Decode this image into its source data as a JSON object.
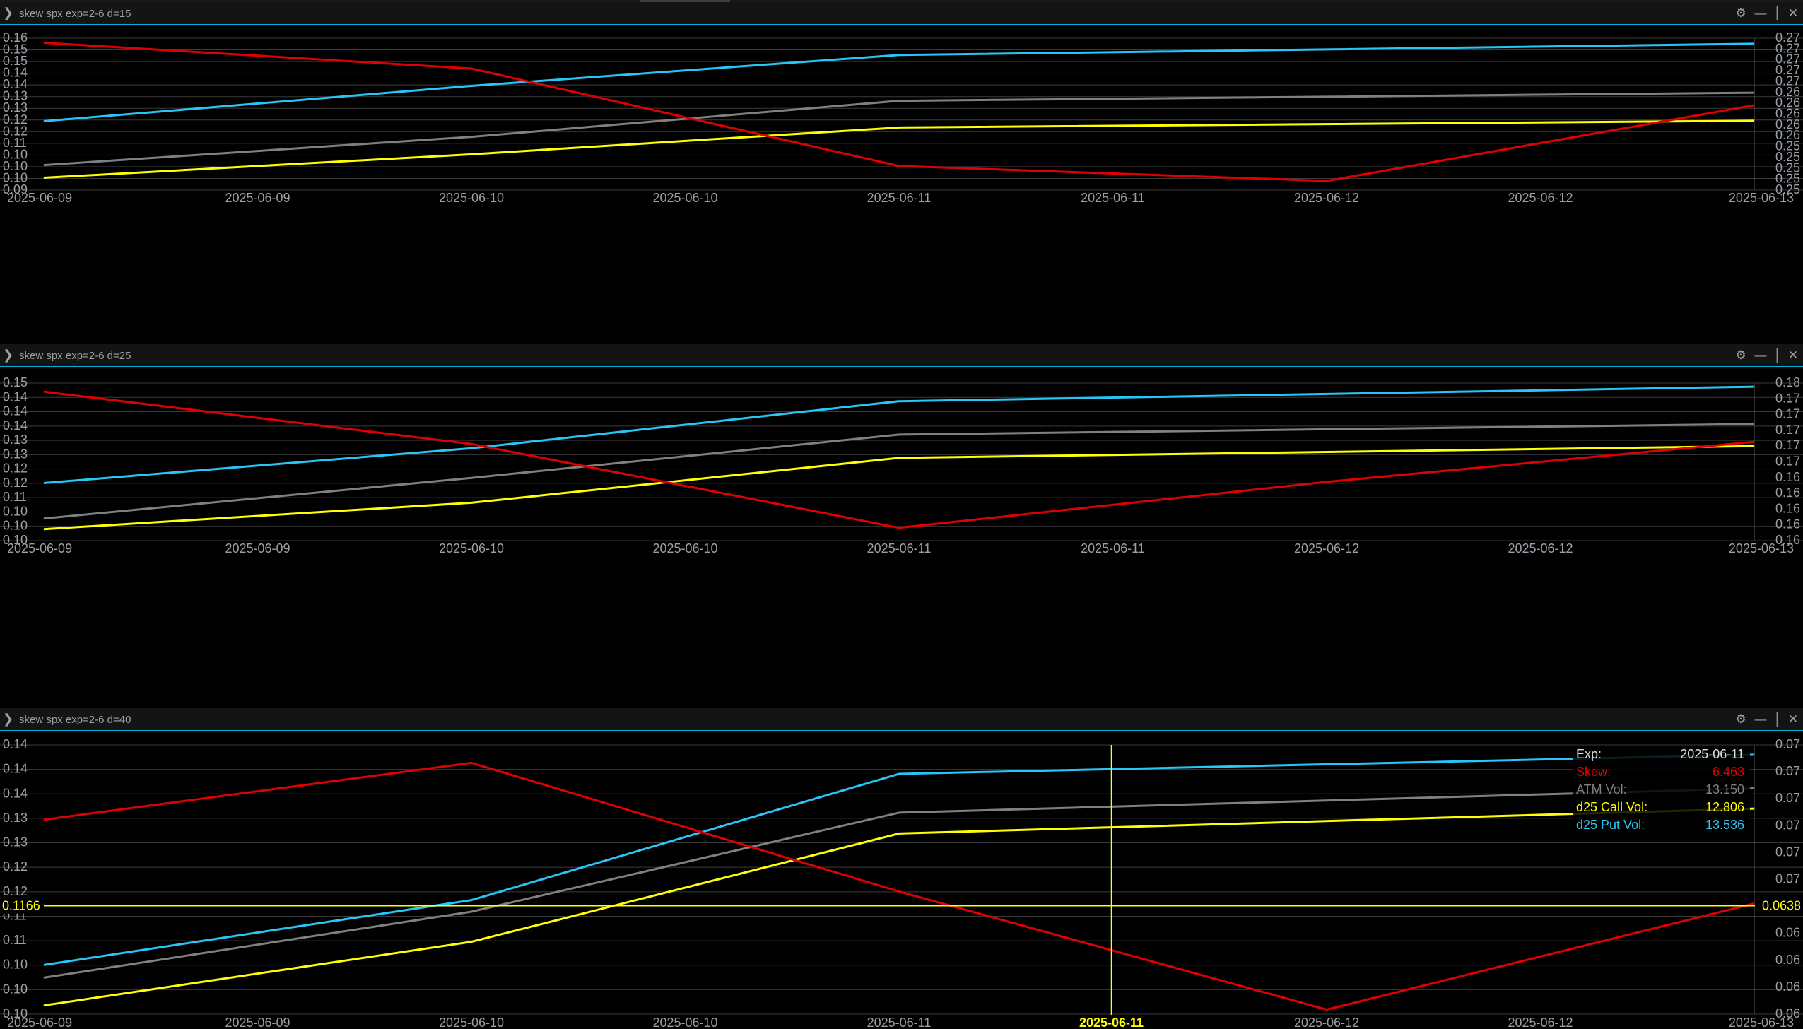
{
  "window": {
    "panels": [
      {
        "title": "skew spx exp=2-6 d=15"
      },
      {
        "title": "skew spx exp=2-6 d=25"
      },
      {
        "title": "skew spx exp=2-6 d=40"
      }
    ],
    "icons": {
      "chevron": "chevron-right-icon",
      "gear": "gear-icon",
      "minimize": "minimize-icon",
      "maximize": "maximize-icon",
      "close": "close-icon"
    }
  },
  "colors": {
    "background": "#000000",
    "grid": "#3a3a3a",
    "accent": "#00b4d8",
    "skew": "#e00000",
    "atm": "#808080",
    "call": "#ffff00",
    "put": "#29c5f6",
    "axis_text": "#9aa0a6"
  },
  "chart_data": [
    {
      "type": "line",
      "title": "skew spx exp=2-6 d=15",
      "x_tick_labels": [
        "2025-06-09",
        "2025-06-09",
        "2025-06-10",
        "2025-06-10",
        "2025-06-11",
        "2025-06-11",
        "2025-06-12",
        "2025-06-12",
        "2025-06-13"
      ],
      "left_tick_labels": [
        "0.16",
        "0.15",
        "0.15",
        "0.14",
        "0.14",
        "0.13",
        "0.13",
        "0.12",
        "0.12",
        "0.11",
        "0.10",
        "0.10",
        "0.10",
        "0.09"
      ],
      "right_tick_labels": [
        "0.27",
        "0.27",
        "0.27",
        "0.27",
        "0.27",
        "0.26",
        "0.26",
        "0.26",
        "0.26",
        "0.26",
        "0.25",
        "0.25",
        "0.25",
        "0.25",
        "0.25"
      ],
      "grid": true,
      "series": [
        {
          "key": "skew",
          "axis": "right",
          "x": [
            0,
            2,
            4,
            6,
            8
          ],
          "y": [
            0.2722,
            0.2677,
            0.2507,
            0.2481,
            0.2613
          ]
        },
        {
          "key": "atm",
          "axis": "left",
          "x": [
            0,
            2,
            4,
            8
          ],
          "y": [
            0.1057,
            0.1178,
            0.1332,
            0.1367
          ]
        },
        {
          "key": "call",
          "axis": "left",
          "x": [
            0,
            2,
            4,
            8
          ],
          "y": [
            0.1003,
            0.1103,
            0.1218,
            0.1247
          ]
        },
        {
          "key": "put",
          "axis": "left",
          "x": [
            0,
            2,
            4,
            8
          ],
          "y": [
            0.1245,
            0.1396,
            0.1528,
            0.1576
          ]
        }
      ]
    },
    {
      "type": "line",
      "title": "skew spx exp=2-6 d=25",
      "x_tick_labels": [
        "2025-06-09",
        "2025-06-09",
        "2025-06-10",
        "2025-06-10",
        "2025-06-11",
        "2025-06-11",
        "2025-06-12",
        "2025-06-12",
        "2025-06-13"
      ],
      "left_tick_labels": [
        "0.15",
        "0.14",
        "0.14",
        "0.14",
        "0.13",
        "0.13",
        "0.12",
        "0.12",
        "0.11",
        "0.10",
        "0.10",
        "0.10"
      ],
      "right_tick_labels": [
        "0.18",
        "0.17",
        "0.17",
        "0.17",
        "0.17",
        "0.17",
        "0.16",
        "0.16",
        "0.16",
        "0.16",
        "0.16"
      ],
      "grid": true,
      "series": [
        {
          "key": "skew",
          "axis": "right",
          "x": [
            0,
            2,
            4,
            6,
            8
          ],
          "y": [
            0.1768,
            0.1695,
            0.1578,
            0.1642,
            0.1698
          ]
        },
        {
          "key": "atm",
          "axis": "left",
          "x": [
            0,
            2,
            4,
            8
          ],
          "y": [
            0.1053,
            0.1187,
            0.133,
            0.1365
          ]
        },
        {
          "key": "call",
          "axis": "left",
          "x": [
            0,
            2,
            4,
            8
          ],
          "y": [
            0.1018,
            0.1105,
            0.1253,
            0.1292
          ]
        },
        {
          "key": "put",
          "axis": "left",
          "x": [
            0,
            2,
            4,
            8
          ],
          "y": [
            0.117,
            0.1285,
            0.144,
            0.1488
          ]
        }
      ]
    },
    {
      "type": "line",
      "title": "skew spx exp=2-6 d=40",
      "x_tick_labels": [
        "2025-06-09",
        "2025-06-09",
        "2025-06-10",
        "2025-06-10",
        "2025-06-11",
        "2025-06-11",
        "2025-06-12",
        "2025-06-12",
        "2025-06-13"
      ],
      "left_tick_labels": [
        "0.14",
        "0.14",
        "0.14",
        "0.13",
        "0.13",
        "0.12",
        "0.12",
        "0.11",
        "0.11",
        "0.10",
        "0.10",
        "0.10"
      ],
      "right_tick_labels": [
        "0.07",
        "0.07",
        "0.07",
        "0.07",
        "0.07",
        "0.07",
        "0.06",
        "0.06",
        "0.06",
        "0.06",
        "0.06"
      ],
      "grid": true,
      "crosshair": {
        "x": 5,
        "x_label": "2025-06-11",
        "left_value": "0.1166",
        "right_value": "0.0638"
      },
      "tooltip": [
        {
          "key": "exp",
          "label": "Exp:",
          "value": "2025-06-11"
        },
        {
          "key": "skew",
          "label": "Skew:",
          "value": "6.463"
        },
        {
          "key": "atm",
          "label": "ATM Vol:",
          "value": "13.150"
        },
        {
          "key": "call",
          "label": "d25 Call Vol:",
          "value": "12.806"
        },
        {
          "key": "put",
          "label": "d25 Put Vol:",
          "value": "13.536"
        }
      ],
      "series": [
        {
          "key": "skew",
          "axis": "right",
          "x": [
            0,
            2,
            4,
            6,
            8
          ],
          "y": [
            0.069,
            0.0728,
            0.0642,
            0.0563,
            0.0634
          ]
        },
        {
          "key": "atm",
          "axis": "left",
          "x": [
            0,
            2,
            4,
            8
          ],
          "y": [
            0.1048,
            0.1162,
            0.1333,
            0.1375
          ]
        },
        {
          "key": "call",
          "axis": "left",
          "x": [
            0,
            2,
            4,
            8
          ],
          "y": [
            0.1,
            0.111,
            0.1297,
            0.134
          ]
        },
        {
          "key": "put",
          "axis": "left",
          "x": [
            0,
            2,
            4,
            8
          ],
          "y": [
            0.107,
            0.1182,
            0.14,
            0.1433
          ]
        }
      ]
    }
  ]
}
